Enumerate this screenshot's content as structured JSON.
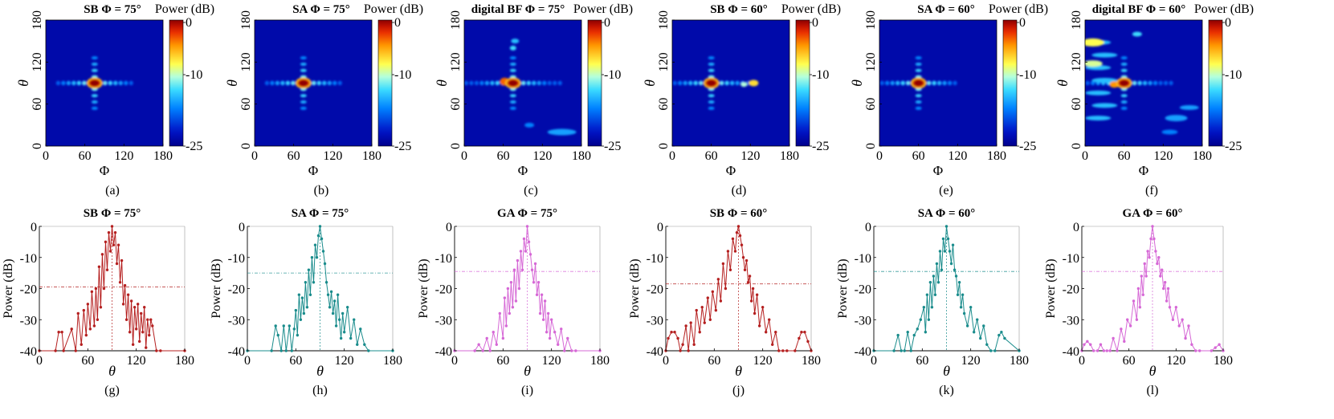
{
  "figure": {
    "heatmap_panels": [
      {
        "label": "(a)",
        "title_bold": "SB",
        "title_rest": " Φ = 75°",
        "beam_phi": 75,
        "beam_theta": 90
      },
      {
        "label": "(b)",
        "title_bold": "SA",
        "title_rest": " Φ = 75°",
        "beam_phi": 75,
        "beam_theta": 90
      },
      {
        "label": "(c)",
        "title_bold": "digital BF",
        "title_rest": " Φ = 75°",
        "beam_phi": 75,
        "beam_theta": 90
      },
      {
        "label": "(d)",
        "title_bold": "SB",
        "title_rest": " Φ = 60°",
        "beam_phi": 60,
        "beam_theta": 90
      },
      {
        "label": "(e)",
        "title_bold": "SA",
        "title_rest": " Φ = 60°",
        "beam_phi": 60,
        "beam_theta": 90
      },
      {
        "label": "(f)",
        "title_bold": "digital BF",
        "title_rest": " Φ = 60°",
        "beam_phi": 60,
        "beam_theta": 90
      }
    ],
    "heatmap_axes": {
      "xlabel": "Φ",
      "ylabel": "θ",
      "xticks": [
        "0",
        "60",
        "120",
        "180"
      ],
      "yticks": [
        "0",
        "60",
        "120",
        "180"
      ],
      "colorbar_label": "Power (dB)",
      "colorbar_ticks": [
        "0",
        "-10",
        "-25"
      ]
    },
    "line_axes": {
      "xlabel": "θ",
      "ylabel": "Power (dB)",
      "xticks": [
        "0",
        "60",
        "120",
        "180"
      ],
      "yticks": [
        "0",
        "-10",
        "-20",
        "-30",
        "-40"
      ]
    },
    "line_panels_meta": [
      {
        "label": "(g)",
        "title_bold": "SB",
        "title_rest": " Φ = 75°",
        "color": "#b52020",
        "threshold": -19.5
      },
      {
        "label": "(h)",
        "title_bold": "SA",
        "title_rest": " Φ = 75°",
        "color": "#1a8c8c",
        "threshold": -15
      },
      {
        "label": "(i)",
        "title_bold": "GA",
        "title_rest": " Φ = 75°",
        "color": "#d668d6",
        "threshold": -14.5
      },
      {
        "label": "(j)",
        "title_bold": "SB",
        "title_rest": " Φ = 60°",
        "color": "#b52020",
        "threshold": -18.5
      },
      {
        "label": "(k)",
        "title_bold": "SA",
        "title_rest": " Φ = 60°",
        "color": "#1a8c8c",
        "threshold": -14.5
      },
      {
        "label": "(l)",
        "title_bold": "GA",
        "title_rest": " Φ = 60°",
        "color": "#d668d6",
        "threshold": -14.5
      }
    ]
  },
  "chart_data": [
    {
      "type": "heatmap",
      "title": "SB Φ = 75°",
      "xlabel": "Φ",
      "ylabel": "θ",
      "xlim": [
        0,
        180
      ],
      "ylim": [
        0,
        180
      ],
      "colorbar": "Power (dB)",
      "zlim": [
        -25,
        0
      ],
      "peak": {
        "phi": 75,
        "theta": 90,
        "value": 0
      }
    },
    {
      "type": "heatmap",
      "title": "SA Φ = 75°",
      "xlabel": "Φ",
      "ylabel": "θ",
      "xlim": [
        0,
        180
      ],
      "ylim": [
        0,
        180
      ],
      "colorbar": "Power (dB)",
      "zlim": [
        -25,
        0
      ],
      "peak": {
        "phi": 75,
        "theta": 90,
        "value": 0
      }
    },
    {
      "type": "heatmap",
      "title": "digital BF Φ = 75°",
      "xlabel": "Φ",
      "ylabel": "θ",
      "xlim": [
        0,
        180
      ],
      "ylim": [
        0,
        180
      ],
      "colorbar": "Power (dB)",
      "zlim": [
        -25,
        0
      ],
      "peak": {
        "phi": 75,
        "theta": 90,
        "value": 0
      }
    },
    {
      "type": "heatmap",
      "title": "SB Φ = 60°",
      "xlabel": "Φ",
      "ylabel": "θ",
      "xlim": [
        0,
        180
      ],
      "ylim": [
        0,
        180
      ],
      "colorbar": "Power (dB)",
      "zlim": [
        -25,
        0
      ],
      "peak": {
        "phi": 60,
        "theta": 90,
        "value": 0
      }
    },
    {
      "type": "heatmap",
      "title": "SA Φ = 60°",
      "xlabel": "Φ",
      "ylabel": "θ",
      "xlim": [
        0,
        180
      ],
      "ylim": [
        0,
        180
      ],
      "colorbar": "Power (dB)",
      "zlim": [
        -25,
        0
      ],
      "peak": {
        "phi": 60,
        "theta": 90,
        "value": 0
      }
    },
    {
      "type": "heatmap",
      "title": "digital BF Φ = 60°",
      "xlabel": "Φ",
      "ylabel": "θ",
      "xlim": [
        0,
        180
      ],
      "ylim": [
        0,
        180
      ],
      "colorbar": "Power (dB)",
      "zlim": [
        -25,
        0
      ],
      "peak": {
        "phi": 60,
        "theta": 90,
        "value": 0
      }
    },
    {
      "type": "line",
      "title": "SB Φ = 75°",
      "xlabel": "θ",
      "ylabel": "Power (dB)",
      "xlim": [
        0,
        180
      ],
      "ylim": [
        -40,
        0
      ],
      "threshold": -19.5,
      "x": [
        0,
        20,
        24,
        28,
        30,
        40,
        45,
        48,
        52,
        55,
        58,
        60,
        63,
        65,
        68,
        70,
        72,
        74,
        76,
        78,
        80,
        82,
        84,
        86,
        88,
        90,
        92,
        94,
        96,
        98,
        100,
        102,
        104,
        106,
        108,
        110,
        112,
        114,
        116,
        118,
        120,
        122,
        124,
        126,
        128,
        130,
        132,
        134,
        136,
        138,
        140,
        145,
        150,
        180
      ],
      "y": [
        -40,
        -40,
        -34,
        -34,
        -40,
        -33,
        -40,
        -28,
        -38,
        -27,
        -35,
        -25,
        -33,
        -21,
        -32,
        -20,
        -30,
        -13,
        -26,
        -9,
        -20,
        -5,
        -14,
        -2,
        -8,
        0,
        -6,
        -2,
        -12,
        -6,
        -18,
        -11,
        -25,
        -19,
        -30,
        -22,
        -34,
        -24,
        -38,
        -26,
        -33,
        -25,
        -37,
        -28,
        -34,
        -26,
        -39,
        -30,
        -35,
        -30,
        -32,
        -40,
        -40,
        -40
      ]
    },
    {
      "type": "line",
      "title": "SA Φ = 75°",
      "xlabel": "θ",
      "ylabel": "Power (dB)",
      "xlim": [
        0,
        180
      ],
      "ylim": [
        -40,
        0
      ],
      "threshold": -15,
      "x": [
        0,
        30,
        35,
        38,
        42,
        45,
        48,
        52,
        55,
        58,
        60,
        62,
        64,
        66,
        68,
        70,
        72,
        74,
        76,
        78,
        80,
        82,
        84,
        86,
        88,
        90,
        92,
        94,
        96,
        98,
        100,
        102,
        104,
        106,
        108,
        110,
        112,
        114,
        116,
        118,
        120,
        124,
        128,
        132,
        136,
        140,
        145,
        150,
        180
      ],
      "y": [
        -40,
        -40,
        -32,
        -35,
        -40,
        -32,
        -40,
        -32,
        -40,
        -33,
        -27,
        -35,
        -22,
        -30,
        -23,
        -28,
        -18,
        -26,
        -14,
        -22,
        -10,
        -18,
        -6,
        -10,
        -3,
        0,
        -4,
        -8,
        -12,
        -18,
        -22,
        -26,
        -21,
        -28,
        -24,
        -32,
        -22,
        -30,
        -36,
        -28,
        -34,
        -26,
        -36,
        -30,
        -38,
        -33,
        -38,
        -40,
        -40
      ]
    },
    {
      "type": "line",
      "title": "GA Φ = 75°",
      "xlabel": "θ",
      "ylabel": "Power (dB)",
      "xlim": [
        0,
        180
      ],
      "ylim": [
        -40,
        0
      ],
      "threshold": -14.5,
      "x": [
        0,
        25,
        30,
        35,
        40,
        44,
        48,
        52,
        56,
        60,
        62,
        64,
        66,
        68,
        70,
        72,
        74,
        76,
        78,
        80,
        82,
        84,
        86,
        88,
        90,
        92,
        94,
        96,
        98,
        100,
        102,
        104,
        106,
        108,
        110,
        112,
        114,
        116,
        118,
        120,
        124,
        128,
        132,
        136,
        140,
        145,
        150,
        180
      ],
      "y": [
        -40,
        -40,
        -38,
        -40,
        -36,
        -40,
        -34,
        -38,
        -28,
        -36,
        -23,
        -32,
        -20,
        -28,
        -18,
        -26,
        -14,
        -24,
        -11,
        -20,
        -8,
        -14,
        -4,
        -8,
        0,
        -5,
        -9,
        -14,
        -18,
        -12,
        -22,
        -18,
        -28,
        -22,
        -30,
        -24,
        -34,
        -28,
        -36,
        -30,
        -34,
        -38,
        -33,
        -40,
        -36,
        -40,
        -40,
        -40
      ]
    },
    {
      "type": "line",
      "title": "SB Φ = 60°",
      "xlabel": "θ",
      "ylabel": "Power (dB)",
      "xlim": [
        0,
        180
      ],
      "ylim": [
        -40,
        0
      ],
      "threshold": -18.5,
      "x": [
        0,
        3,
        7,
        11,
        15,
        18,
        21,
        25,
        28,
        31,
        35,
        38,
        42,
        45,
        48,
        52,
        55,
        58,
        62,
        65,
        68,
        71,
        74,
        77,
        80,
        83,
        86,
        88,
        90,
        92,
        94,
        96,
        98,
        100,
        102,
        104,
        106,
        108,
        110,
        113,
        116,
        120,
        124,
        128,
        132,
        136,
        140,
        145,
        150,
        160,
        165,
        168,
        172,
        176,
        180
      ],
      "y": [
        -40,
        -36,
        -34,
        -34,
        -36,
        -40,
        -38,
        -32,
        -40,
        -31,
        -38,
        -27,
        -34,
        -26,
        -31,
        -23,
        -30,
        -21,
        -27,
        -17,
        -24,
        -12,
        -20,
        -8,
        -14,
        -4,
        -8,
        -2,
        0,
        -3,
        -6,
        -10,
        -14,
        -11,
        -18,
        -16,
        -24,
        -20,
        -28,
        -22,
        -32,
        -26,
        -34,
        -30,
        -38,
        -34,
        -40,
        -40,
        -40,
        -40,
        -36,
        -34,
        -34,
        -37,
        -40
      ]
    },
    {
      "type": "line",
      "title": "SA Φ = 60°",
      "xlabel": "θ",
      "ylabel": "Power (dB)",
      "xlim": [
        0,
        180
      ],
      "ylim": [
        -40,
        0
      ],
      "threshold": -14.5,
      "x": [
        0,
        25,
        30,
        34,
        38,
        42,
        46,
        50,
        54,
        58,
        62,
        64,
        66,
        68,
        70,
        72,
        74,
        76,
        78,
        80,
        82,
        84,
        86,
        88,
        90,
        92,
        94,
        96,
        98,
        100,
        102,
        104,
        106,
        108,
        110,
        112,
        116,
        120,
        124,
        128,
        132,
        136,
        140,
        145,
        150,
        155,
        158,
        162,
        180
      ],
      "y": [
        -40,
        -40,
        -35,
        -40,
        -40,
        -34,
        -40,
        -35,
        -33,
        -30,
        -26,
        -34,
        -22,
        -30,
        -18,
        -26,
        -16,
        -22,
        -12,
        -18,
        -8,
        -14,
        -4,
        -8,
        0,
        -4,
        -8,
        -12,
        -6,
        -14,
        -16,
        -22,
        -18,
        -26,
        -22,
        -28,
        -32,
        -26,
        -34,
        -30,
        -36,
        -32,
        -38,
        -40,
        -40,
        -35,
        -34,
        -36,
        -40
      ]
    },
    {
      "type": "line",
      "title": "GA Φ = 60°",
      "xlabel": "θ",
      "ylabel": "Power (dB)",
      "xlim": [
        0,
        180
      ],
      "ylim": [
        -40,
        0
      ],
      "threshold": -14.5,
      "x": [
        0,
        3,
        7,
        11,
        15,
        20,
        24,
        28,
        32,
        36,
        40,
        45,
        50,
        54,
        58,
        62,
        66,
        70,
        72,
        74,
        76,
        78,
        80,
        82,
        84,
        86,
        88,
        90,
        92,
        94,
        96,
        98,
        100,
        102,
        104,
        106,
        108,
        110,
        112,
        116,
        120,
        124,
        128,
        132,
        136,
        140,
        145,
        150,
        165,
        170,
        175,
        180
      ],
      "y": [
        -40,
        -38,
        -37,
        -38,
        -40,
        -40,
        -38,
        -40,
        -40,
        -40,
        -36,
        -40,
        -33,
        -37,
        -30,
        -32,
        -24,
        -30,
        -20,
        -26,
        -16,
        -22,
        -12,
        -16,
        -8,
        -10,
        -4,
        0,
        -4,
        -8,
        -12,
        -10,
        -16,
        -14,
        -20,
        -18,
        -24,
        -20,
        -26,
        -30,
        -26,
        -32,
        -30,
        -36,
        -32,
        -38,
        -40,
        -40,
        -40,
        -39,
        -38,
        -40
      ]
    }
  ]
}
